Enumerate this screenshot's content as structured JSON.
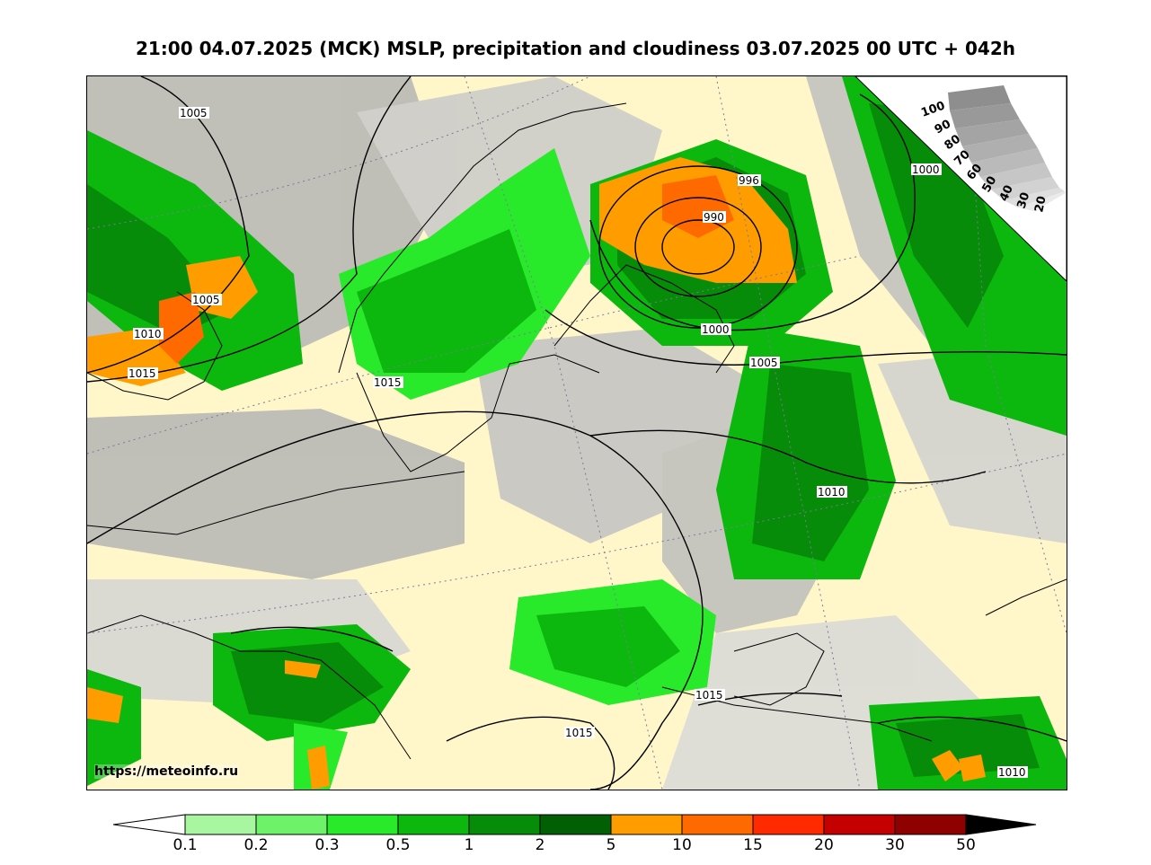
{
  "title": "21:00 04.07.2025 (MCK) MSLP, precipitation and cloudiness 03.07.2025 00 UTC + 042h",
  "watermark": "https://meteoinfo.ru",
  "isobar_labels": [
    "1005",
    "1005",
    "1010",
    "1015",
    "1015",
    "996",
    "990",
    "1000",
    "1000",
    "1005",
    "1010",
    "1015",
    "1015",
    "1010"
  ],
  "cloudiness_scale": [
    "100",
    "90",
    "80",
    "70",
    "60",
    "50",
    "40",
    "30",
    "20"
  ],
  "precip_scale": {
    "ticks": [
      "0.1",
      "0.2",
      "0.3",
      "0.5",
      "1",
      "2",
      "5",
      "10",
      "15",
      "20",
      "30",
      "50"
    ],
    "colors": [
      "#ffffff",
      "#a8f7a0",
      "#6ef26a",
      "#28e92a",
      "#0cb80e",
      "#068c08",
      "#035f04",
      "#ff9d00",
      "#ff6a00",
      "#ff2a00",
      "#c40000",
      "#8f0000",
      "#000000"
    ]
  },
  "colors": {
    "land_clear": "#fff7c9",
    "cloud_grey": "#a9a9a9",
    "isobar": "#000000"
  }
}
